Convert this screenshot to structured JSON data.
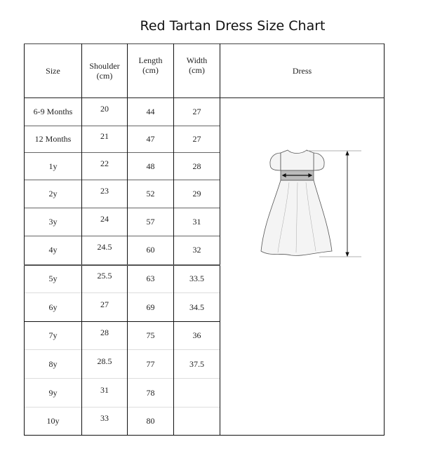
{
  "title": "Red Tartan Dress Size Chart",
  "headers": {
    "size": "Size",
    "shoulder": [
      "Shoulder",
      "(cm)"
    ],
    "length": [
      "Length",
      "(cm)"
    ],
    "width": [
      "Width",
      "(cm)"
    ],
    "dress": "Dress"
  },
  "rows": [
    {
      "size": "6-9 Months",
      "shoulder": "20",
      "length": "44",
      "width": "27"
    },
    {
      "size": "12 Months",
      "shoulder": "21",
      "length": "47",
      "width": "27"
    },
    {
      "size": "1y",
      "shoulder": "22",
      "length": "48",
      "width": "28"
    },
    {
      "size": "2y",
      "shoulder": "23",
      "length": "52",
      "width": "29"
    },
    {
      "size": "3y",
      "shoulder": "24",
      "length": "57",
      "width": "31"
    },
    {
      "size": "4y",
      "shoulder": "24.5",
      "length": "60",
      "width": "32"
    },
    {
      "size": "5y",
      "shoulder": "25.5",
      "length": "63",
      "width": "33.5"
    },
    {
      "size": "6y",
      "shoulder": "27",
      "length": "69",
      "width": "34.5"
    },
    {
      "size": "7y",
      "shoulder": "28",
      "length": "75",
      "width": "36"
    },
    {
      "size": "8y",
      "shoulder": "28.5",
      "length": "77",
      "width": "37.5"
    },
    {
      "size": "9y",
      "shoulder": "31",
      "length": "78",
      "width": ""
    },
    {
      "size": "10y",
      "shoulder": "33",
      "length": "80",
      "width": ""
    }
  ],
  "illustration": "dress-measurement-diagram"
}
